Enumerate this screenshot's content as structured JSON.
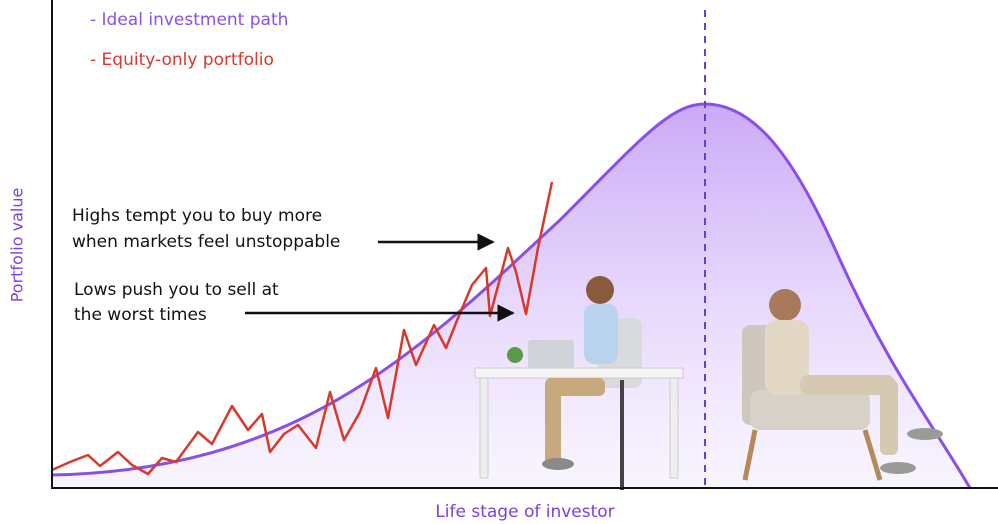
{
  "legend": {
    "items": [
      {
        "label": "- Ideal investment path",
        "color": "#8a4fe8"
      },
      {
        "label": "- Equity-only portfolio",
        "color": "#d9382c"
      }
    ]
  },
  "annotations": [
    {
      "lines": [
        "Highs tempt you to buy more",
        "when markets feel unstoppable"
      ]
    },
    {
      "lines": [
        "Lows push you to sell at",
        "the worst times"
      ]
    }
  ],
  "axes": {
    "y_label": "Portfolio value",
    "x_label": "Life stage of investor"
  }
}
